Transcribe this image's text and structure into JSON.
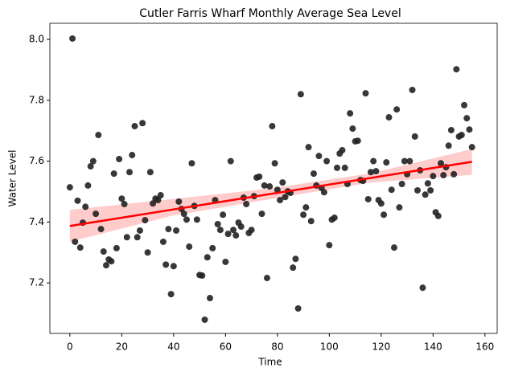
{
  "chart_data": {
    "type": "scatter",
    "title": "Cutler Farris Wharf Monthly Average Sea Level",
    "x_label": "Time",
    "y_label": "Water Level",
    "x": [
      0,
      1,
      2,
      3,
      4,
      5,
      6,
      7,
      8,
      9,
      10,
      11,
      12,
      13,
      14,
      15,
      16,
      17,
      18,
      19,
      20,
      21,
      22,
      23,
      24,
      25,
      26,
      27,
      28,
      29,
      30,
      31,
      32,
      33,
      34,
      35,
      36,
      37,
      38,
      39,
      40,
      41,
      42,
      43,
      44,
      45,
      46,
      47,
      48,
      49,
      50,
      51,
      52,
      53,
      54,
      55,
      56,
      57,
      58,
      59,
      60,
      61,
      62,
      63,
      64,
      65,
      66,
      67,
      68,
      69,
      70,
      71,
      72,
      73,
      74,
      75,
      76,
      77,
      78,
      79,
      80,
      81,
      82,
      83,
      84,
      85,
      86,
      87,
      88,
      89,
      90,
      91,
      92,
      93,
      94,
      95,
      96,
      97,
      98,
      99,
      100,
      101,
      102,
      103,
      104,
      105,
      106,
      107,
      108,
      109,
      110,
      111,
      112,
      113,
      114,
      115,
      116,
      117,
      118,
      119,
      120,
      121,
      122,
      123,
      124,
      125,
      126,
      127,
      128,
      129,
      130,
      131,
      132,
      133,
      134,
      135,
      136,
      137,
      138,
      139,
      140,
      141,
      142,
      143,
      144,
      145,
      146,
      147,
      148,
      149,
      150,
      151,
      152,
      153,
      154,
      155
    ],
    "values": [
      7.514,
      8.003,
      7.335,
      7.47,
      7.316,
      7.398,
      7.45,
      7.52,
      7.583,
      7.6,
      7.427,
      7.686,
      7.377,
      7.303,
      7.258,
      7.277,
      7.271,
      7.559,
      7.314,
      7.607,
      7.477,
      7.459,
      7.35,
      7.564,
      7.62,
      7.715,
      7.35,
      7.372,
      7.725,
      7.406,
      7.3,
      7.564,
      7.461,
      7.477,
      7.472,
      7.488,
      7.335,
      7.26,
      7.377,
      7.163,
      7.255,
      7.372,
      7.467,
      7.443,
      7.427,
      7.408,
      7.319,
      7.593,
      7.453,
      7.408,
      7.226,
      7.224,
      7.079,
      7.284,
      7.15,
      7.314,
      7.472,
      7.393,
      7.374,
      7.424,
      7.269,
      7.361,
      7.6,
      7.374,
      7.356,
      7.398,
      7.385,
      7.48,
      7.459,
      7.364,
      7.374,
      7.485,
      7.546,
      7.549,
      7.427,
      7.52,
      7.216,
      7.517,
      7.715,
      7.593,
      7.506,
      7.472,
      7.53,
      7.482,
      7.501,
      7.496,
      7.25,
      7.279,
      7.116,
      7.82,
      7.424,
      7.448,
      7.646,
      7.403,
      7.559,
      7.52,
      7.617,
      7.512,
      7.498,
      7.6,
      7.324,
      7.408,
      7.414,
      7.578,
      7.625,
      7.636,
      7.578,
      7.525,
      7.757,
      7.707,
      7.665,
      7.667,
      7.538,
      7.535,
      7.823,
      7.475,
      7.564,
      7.6,
      7.567,
      7.472,
      7.461,
      7.424,
      7.596,
      7.744,
      7.506,
      7.316,
      7.77,
      7.448,
      7.525,
      7.6,
      7.557,
      7.6,
      7.834,
      7.681,
      7.504,
      7.57,
      7.184,
      7.49,
      7.527,
      7.504,
      7.551,
      7.432,
      7.42,
      7.593,
      7.554,
      7.58,
      7.651,
      7.702,
      7.557,
      7.902,
      7.681,
      7.686,
      7.784,
      7.741,
      7.704,
      7.646
    ],
    "color": "#222222",
    "regression": {
      "color": "#ff0000",
      "band_color": "#ffcccc",
      "x": [
        0,
        155
      ],
      "y": [
        7.387,
        7.598
      ],
      "band_x": [
        0,
        39,
        77,
        116,
        155
      ],
      "band_lower": [
        7.335,
        7.42,
        7.475,
        7.53,
        7.555
      ],
      "band_upper": [
        7.44,
        7.475,
        7.51,
        7.56,
        7.64
      ]
    },
    "xlim": [
      -7.7,
      164.7
    ],
    "ylim": [
      7.034,
      8.053
    ],
    "xticks": [
      0,
      20,
      40,
      60,
      80,
      100,
      120,
      140,
      160
    ],
    "yticks": [
      7.2,
      7.4,
      7.6,
      7.8,
      {
        "value": 8,
        "label": "8.0"
      }
    ]
  }
}
